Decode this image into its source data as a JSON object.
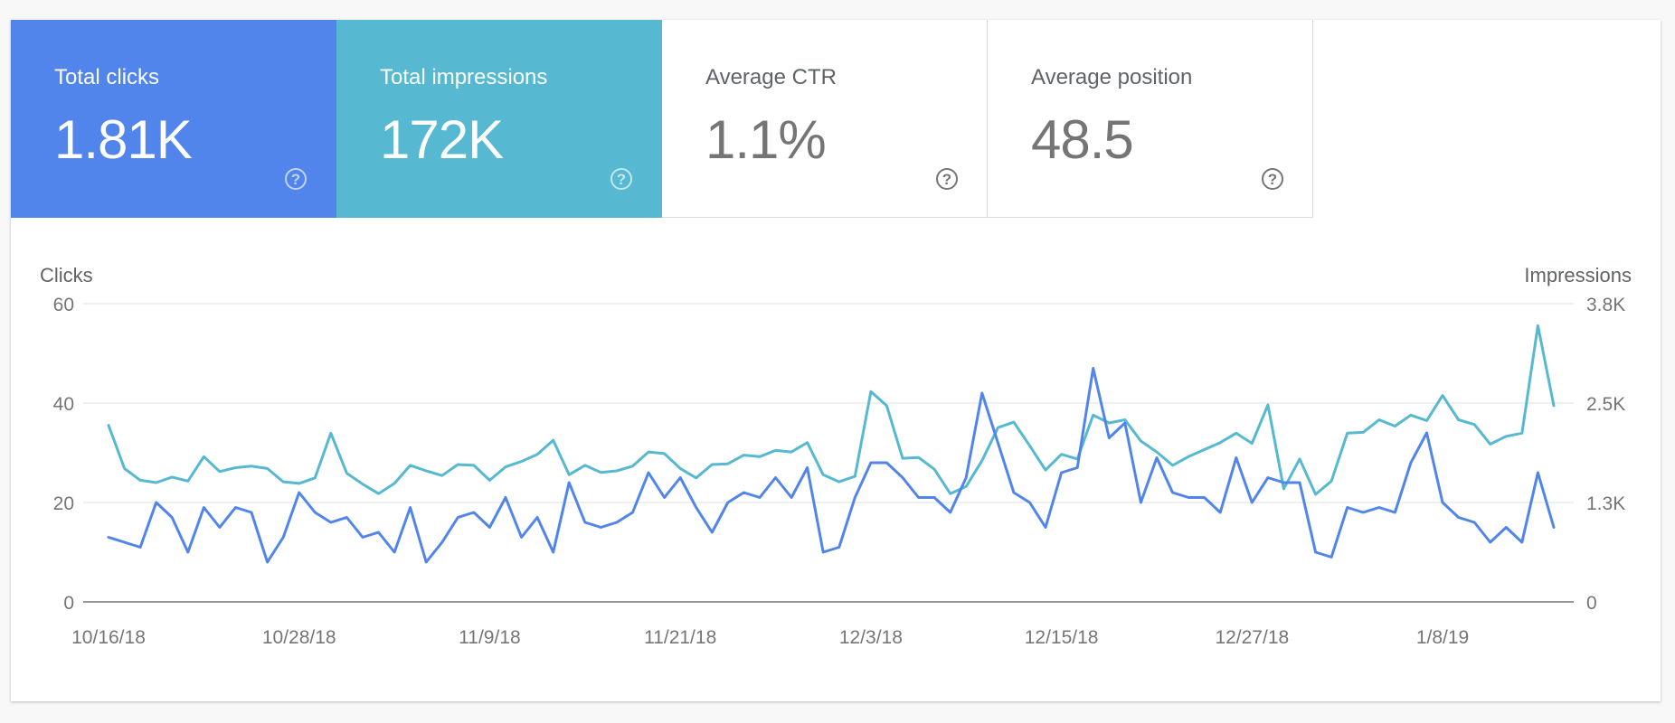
{
  "metrics": [
    {
      "label": "Total clicks",
      "value": "1.81K",
      "help_icon": "help-circle-icon",
      "selected": true,
      "color": "#5185ec"
    },
    {
      "label": "Total impressions",
      "value": "172K",
      "help_icon": "help-circle-icon",
      "selected": true,
      "color": "#56b9d1"
    },
    {
      "label": "Average CTR",
      "value": "1.1%",
      "help_icon": "help-circle-icon",
      "selected": false
    },
    {
      "label": "Average position",
      "value": "48.5",
      "help_icon": "help-circle-icon",
      "selected": false
    }
  ],
  "chart_data": {
    "type": "line",
    "left_axis": {
      "label": "Clicks",
      "ticks": [
        "0",
        "20",
        "40",
        "60"
      ],
      "range": [
        0,
        60
      ]
    },
    "right_axis": {
      "label": "Impressions",
      "ticks": [
        "0",
        "1.3K",
        "2.5K",
        "3.8K"
      ],
      "range": [
        0,
        3800
      ]
    },
    "x_tick_labels": [
      "10/16/18",
      "10/28/18",
      "11/9/18",
      "11/21/18",
      "12/3/18",
      "12/15/18",
      "12/27/18",
      "1/8/19"
    ],
    "x_start": "10/16/18",
    "x_tick_step_days": 12,
    "grid": true,
    "series": [
      {
        "axis": "left",
        "color": "#5185ec",
        "values": [
          13,
          12,
          11,
          20,
          17,
          10,
          19,
          15,
          19,
          18,
          8,
          13,
          22,
          18,
          16,
          17,
          13,
          14,
          10,
          19,
          8,
          12,
          17,
          18,
          15,
          21,
          13,
          17,
          10,
          24,
          16,
          15,
          16,
          18,
          26,
          21,
          25,
          19,
          14,
          20,
          22,
          21,
          25,
          21,
          27,
          10,
          11,
          21,
          28,
          28,
          25,
          21,
          21,
          18,
          25,
          42,
          32,
          22,
          20,
          15,
          26,
          27,
          47,
          33,
          36,
          20,
          29,
          22,
          21,
          21,
          18,
          29,
          20,
          25,
          24,
          24,
          10,
          9,
          19,
          18,
          19,
          18,
          28,
          34,
          20,
          17,
          16,
          12,
          15,
          12,
          26,
          15
        ]
      },
      {
        "axis": "right",
        "color": "#56b9d1",
        "values": [
          2250,
          1700,
          1550,
          1520,
          1590,
          1540,
          1850,
          1660,
          1710,
          1730,
          1700,
          1530,
          1510,
          1580,
          2150,
          1640,
          1500,
          1380,
          1510,
          1740,
          1670,
          1610,
          1750,
          1740,
          1550,
          1720,
          1790,
          1880,
          2060,
          1620,
          1740,
          1650,
          1670,
          1730,
          1910,
          1890,
          1700,
          1580,
          1750,
          1760,
          1870,
          1850,
          1930,
          1910,
          2030,
          1620,
          1530,
          1600,
          2680,
          2500,
          1830,
          1840,
          1690,
          1380,
          1470,
          1800,
          2220,
          2290,
          1990,
          1680,
          1880,
          1820,
          2380,
          2280,
          2320,
          2050,
          1910,
          1740,
          1850,
          1940,
          2030,
          2150,
          2020,
          2510,
          1440,
          1820,
          1370,
          1540,
          2150,
          2160,
          2320,
          2240,
          2380,
          2310,
          2630,
          2320,
          2260,
          2010,
          2110,
          2150,
          3520,
          2500
        ]
      }
    ]
  }
}
